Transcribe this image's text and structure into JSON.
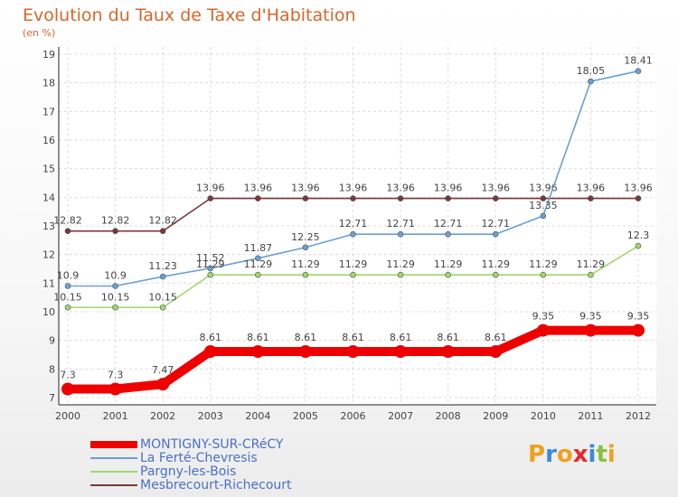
{
  "header": {
    "title": "Evolution du Taux de Taxe d'Habitation",
    "unit": "(en %)"
  },
  "chart_data": {
    "type": "line",
    "x": [
      "2000",
      "2001",
      "2002",
      "2003",
      "2004",
      "2005",
      "2006",
      "2007",
      "2008",
      "2009",
      "2010",
      "2011",
      "2012"
    ],
    "ylim": [
      7,
      19
    ],
    "yticks": [
      7,
      8,
      9,
      10,
      11,
      12,
      13,
      14,
      15,
      16,
      17,
      18,
      19
    ],
    "grid": true,
    "series": [
      {
        "name": "MONTIGNY-SUR-CRéCY",
        "color": "#ee0000",
        "values": [
          7.3,
          7.3,
          7.47,
          8.61,
          8.61,
          8.61,
          8.61,
          8.61,
          8.61,
          8.61,
          9.35,
          9.35,
          9.35
        ],
        "labels": [
          "7.3",
          "7.3",
          "7.47",
          "8.61",
          "8.61",
          "8.61",
          "8.61",
          "8.61",
          "8.61",
          "8.61",
          "9.35",
          "9.35",
          "9.35"
        ]
      },
      {
        "name": "La Ferté-Chevresis",
        "color": "#6aa0d4",
        "values": [
          10.9,
          10.9,
          11.23,
          11.52,
          11.87,
          12.25,
          12.71,
          12.71,
          12.71,
          12.71,
          13.35,
          18.05,
          18.41
        ],
        "labels": [
          "10.9",
          "10.9",
          "11.23",
          "11.52",
          "11.87",
          "12.25",
          "12.71",
          "12.71",
          "12.71",
          "12.71",
          "13.35",
          "18.05",
          "18.41"
        ]
      },
      {
        "name": "Pargny-les-Bois",
        "color": "#9ed86a",
        "values": [
          10.15,
          10.15,
          10.15,
          11.29,
          11.29,
          11.29,
          11.29,
          11.29,
          11.29,
          11.29,
          11.29,
          11.29,
          12.3
        ],
        "labels": [
          "10.15",
          "10.15",
          "10.15",
          "11.29",
          "11.29",
          "11.29",
          "11.29",
          "11.29",
          "11.29",
          "11.29",
          "11.29",
          "11.29",
          "12.3"
        ]
      },
      {
        "name": "Mesbrecourt-Richecourt",
        "color": "#7a3838",
        "values": [
          12.82,
          12.82,
          12.82,
          13.96,
          13.96,
          13.96,
          13.96,
          13.96,
          13.96,
          13.96,
          13.96,
          13.96,
          13.96
        ],
        "labels": [
          "12.82",
          "12.82",
          "12.82",
          "13.96",
          "13.96",
          "13.96",
          "13.96",
          "13.96",
          "13.96",
          "13.96",
          "13.96",
          "13.96",
          "13.96"
        ]
      }
    ]
  },
  "legend": {
    "placement": "bottom-left",
    "items": [
      {
        "label": "MONTIGNY-SUR-CRéCY",
        "color": "#ee0000"
      },
      {
        "label": "La Ferté-Chevresis",
        "color": "#6aa0d4"
      },
      {
        "label": "Pargny-les-Bois",
        "color": "#9ed86a"
      },
      {
        "label": "Mesbrecourt-Richecourt",
        "color": "#7a3838"
      }
    ]
  },
  "logo": {
    "text": "Proxiti",
    "letters": [
      "P",
      "r",
      "o",
      "x",
      "i",
      "t",
      "i"
    ],
    "colors": [
      "#f0a020",
      "#3a8ad8",
      "#f0a020",
      "#e8282a",
      "#3a8ad8",
      "#8ac040",
      "#f0a020"
    ]
  }
}
